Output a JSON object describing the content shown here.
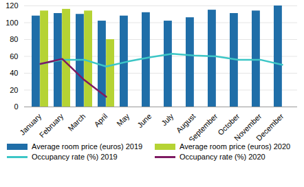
{
  "chart_data": {
    "type": "bar",
    "categories": [
      "January",
      "February",
      "March",
      "April",
      "May",
      "June",
      "July",
      "August",
      "September",
      "October",
      "November",
      "December"
    ],
    "series": [
      {
        "name": "Average room price (euros) 2019",
        "type": "bar",
        "color": "#1f6ea8",
        "values": [
          108,
          111,
          110,
          102,
          108,
          112,
          102,
          106,
          115,
          111,
          114,
          120
        ]
      },
      {
        "name": "Average room price (euros) 2020",
        "type": "bar",
        "color": "#b5d334",
        "values": [
          114,
          116,
          114,
          80,
          null,
          null,
          null,
          null,
          null,
          null,
          null,
          null
        ]
      },
      {
        "name": "Occupancy rate (%) 2019",
        "type": "line",
        "color": "#3cc6c6",
        "values": [
          51,
          56,
          56,
          48,
          54,
          59,
          63,
          61,
          60,
          56,
          56,
          50
        ]
      },
      {
        "name": "Occupancy rate (%) 2020",
        "type": "line",
        "color": "#7e1a62",
        "values": [
          51,
          57,
          32,
          12,
          null,
          null,
          null,
          null,
          null,
          null,
          null,
          null
        ]
      }
    ],
    "ylim": [
      0,
      120
    ],
    "yticks": [
      0,
      20,
      40,
      60,
      80,
      100,
      120
    ],
    "grid": true,
    "legend": "bottom"
  }
}
